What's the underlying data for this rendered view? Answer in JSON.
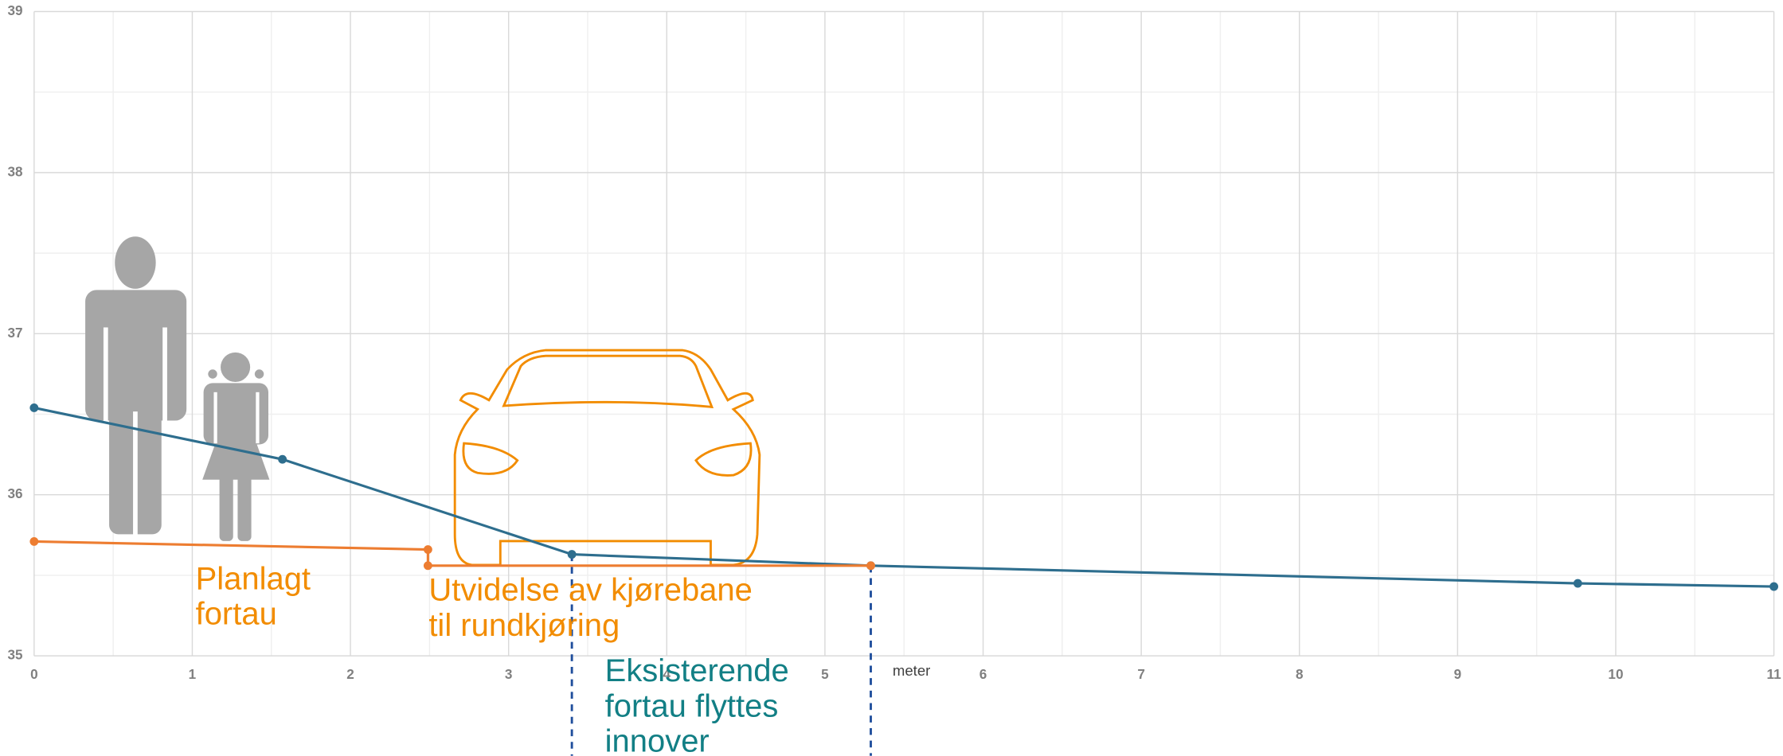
{
  "chart_data": {
    "type": "line",
    "x_label": "meter",
    "xlim": [
      0,
      11
    ],
    "xticks": [
      0,
      1,
      2,
      3,
      4,
      5,
      6,
      7,
      8,
      9,
      10,
      11
    ],
    "ylim": [
      35,
      39
    ],
    "yticks": [
      35,
      36,
      37,
      38,
      39
    ],
    "grid": true,
    "minor_grid": true,
    "series": [
      {
        "color": "#2e6e8e",
        "x": [
          0,
          1.57,
          3.4,
          5.29,
          9.76,
          11
        ],
        "values": [
          36.54,
          36.22,
          35.63,
          35.56,
          35.45,
          35.43
        ]
      },
      {
        "color": "#ed7d31",
        "x": [
          0,
          2.49,
          2.49,
          5.29
        ],
        "values": [
          35.71,
          35.66,
          35.56,
          35.56
        ]
      }
    ],
    "vlines": [
      3.4,
      5.29
    ],
    "annotations": [
      {
        "lines": [
          "Planlagt",
          "fortau"
        ],
        "color": "#f28c00"
      },
      {
        "lines": [
          "Utvidelse av kjørebane",
          "til rundkjøring"
        ],
        "color": "#f28c00"
      },
      {
        "lines": [
          "Eksisterende",
          "fortau flyttes",
          "innover"
        ],
        "color": "#127f85"
      }
    ]
  }
}
